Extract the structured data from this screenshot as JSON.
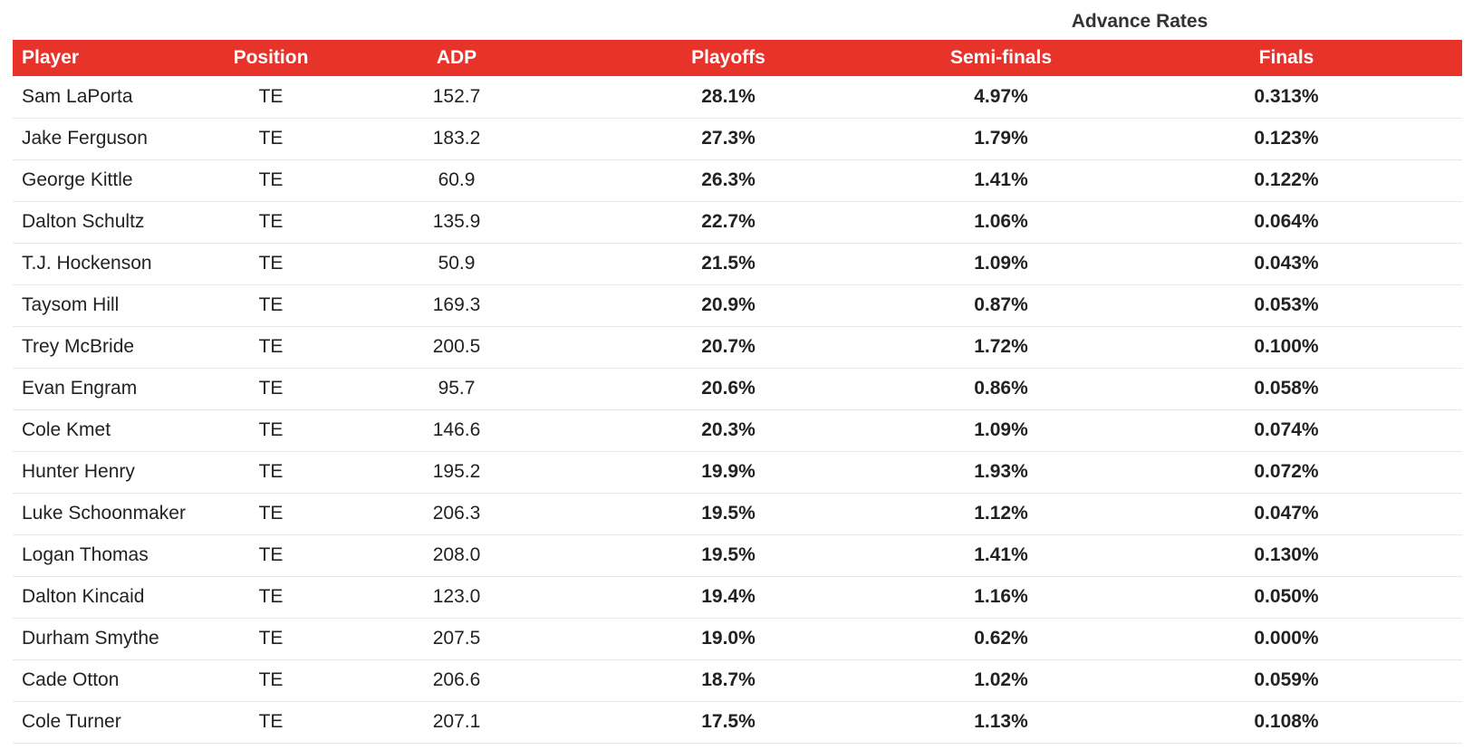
{
  "spanner": {
    "label": "Advance Rates"
  },
  "headers": {
    "player": "Player",
    "position": "Position",
    "adp": "ADP",
    "playoffs": "Playoffs",
    "semifinals": "Semi-finals",
    "finals": "Finals"
  },
  "rows": [
    {
      "player": "Sam LaPorta",
      "position": "TE",
      "adp": "152.7",
      "playoffs": "28.1%",
      "semifinals": "4.97%",
      "finals": "0.313%"
    },
    {
      "player": "Jake Ferguson",
      "position": "TE",
      "adp": "183.2",
      "playoffs": "27.3%",
      "semifinals": "1.79%",
      "finals": "0.123%"
    },
    {
      "player": "George Kittle",
      "position": "TE",
      "adp": "60.9",
      "playoffs": "26.3%",
      "semifinals": "1.41%",
      "finals": "0.122%"
    },
    {
      "player": "Dalton Schultz",
      "position": "TE",
      "adp": "135.9",
      "playoffs": "22.7%",
      "semifinals": "1.06%",
      "finals": "0.064%"
    },
    {
      "player": "T.J. Hockenson",
      "position": "TE",
      "adp": "50.9",
      "playoffs": "21.5%",
      "semifinals": "1.09%",
      "finals": "0.043%"
    },
    {
      "player": "Taysom Hill",
      "position": "TE",
      "adp": "169.3",
      "playoffs": "20.9%",
      "semifinals": "0.87%",
      "finals": "0.053%"
    },
    {
      "player": "Trey McBride",
      "position": "TE",
      "adp": "200.5",
      "playoffs": "20.7%",
      "semifinals": "1.72%",
      "finals": "0.100%"
    },
    {
      "player": "Evan Engram",
      "position": "TE",
      "adp": "95.7",
      "playoffs": "20.6%",
      "semifinals": "0.86%",
      "finals": "0.058%"
    },
    {
      "player": "Cole Kmet",
      "position": "TE",
      "adp": "146.6",
      "playoffs": "20.3%",
      "semifinals": "1.09%",
      "finals": "0.074%"
    },
    {
      "player": "Hunter Henry",
      "position": "TE",
      "adp": "195.2",
      "playoffs": "19.9%",
      "semifinals": "1.93%",
      "finals": "0.072%"
    },
    {
      "player": "Luke Schoonmaker",
      "position": "TE",
      "adp": "206.3",
      "playoffs": "19.5%",
      "semifinals": "1.12%",
      "finals": "0.047%"
    },
    {
      "player": "Logan Thomas",
      "position": "TE",
      "adp": "208.0",
      "playoffs": "19.5%",
      "semifinals": "1.41%",
      "finals": "0.130%"
    },
    {
      "player": "Dalton Kincaid",
      "position": "TE",
      "adp": "123.0",
      "playoffs": "19.4%",
      "semifinals": "1.16%",
      "finals": "0.050%"
    },
    {
      "player": "Durham Smythe",
      "position": "TE",
      "adp": "207.5",
      "playoffs": "19.0%",
      "semifinals": "0.62%",
      "finals": "0.000%"
    },
    {
      "player": "Cade Otton",
      "position": "TE",
      "adp": "206.6",
      "playoffs": "18.7%",
      "semifinals": "1.02%",
      "finals": "0.059%"
    },
    {
      "player": "Cole Turner",
      "position": "TE",
      "adp": "207.1",
      "playoffs": "17.5%",
      "semifinals": "1.13%",
      "finals": "0.108%"
    }
  ],
  "colors": {
    "header_bg": "#e8332a",
    "header_text": "#ffffff",
    "row_divider": "#e8e8e8"
  }
}
